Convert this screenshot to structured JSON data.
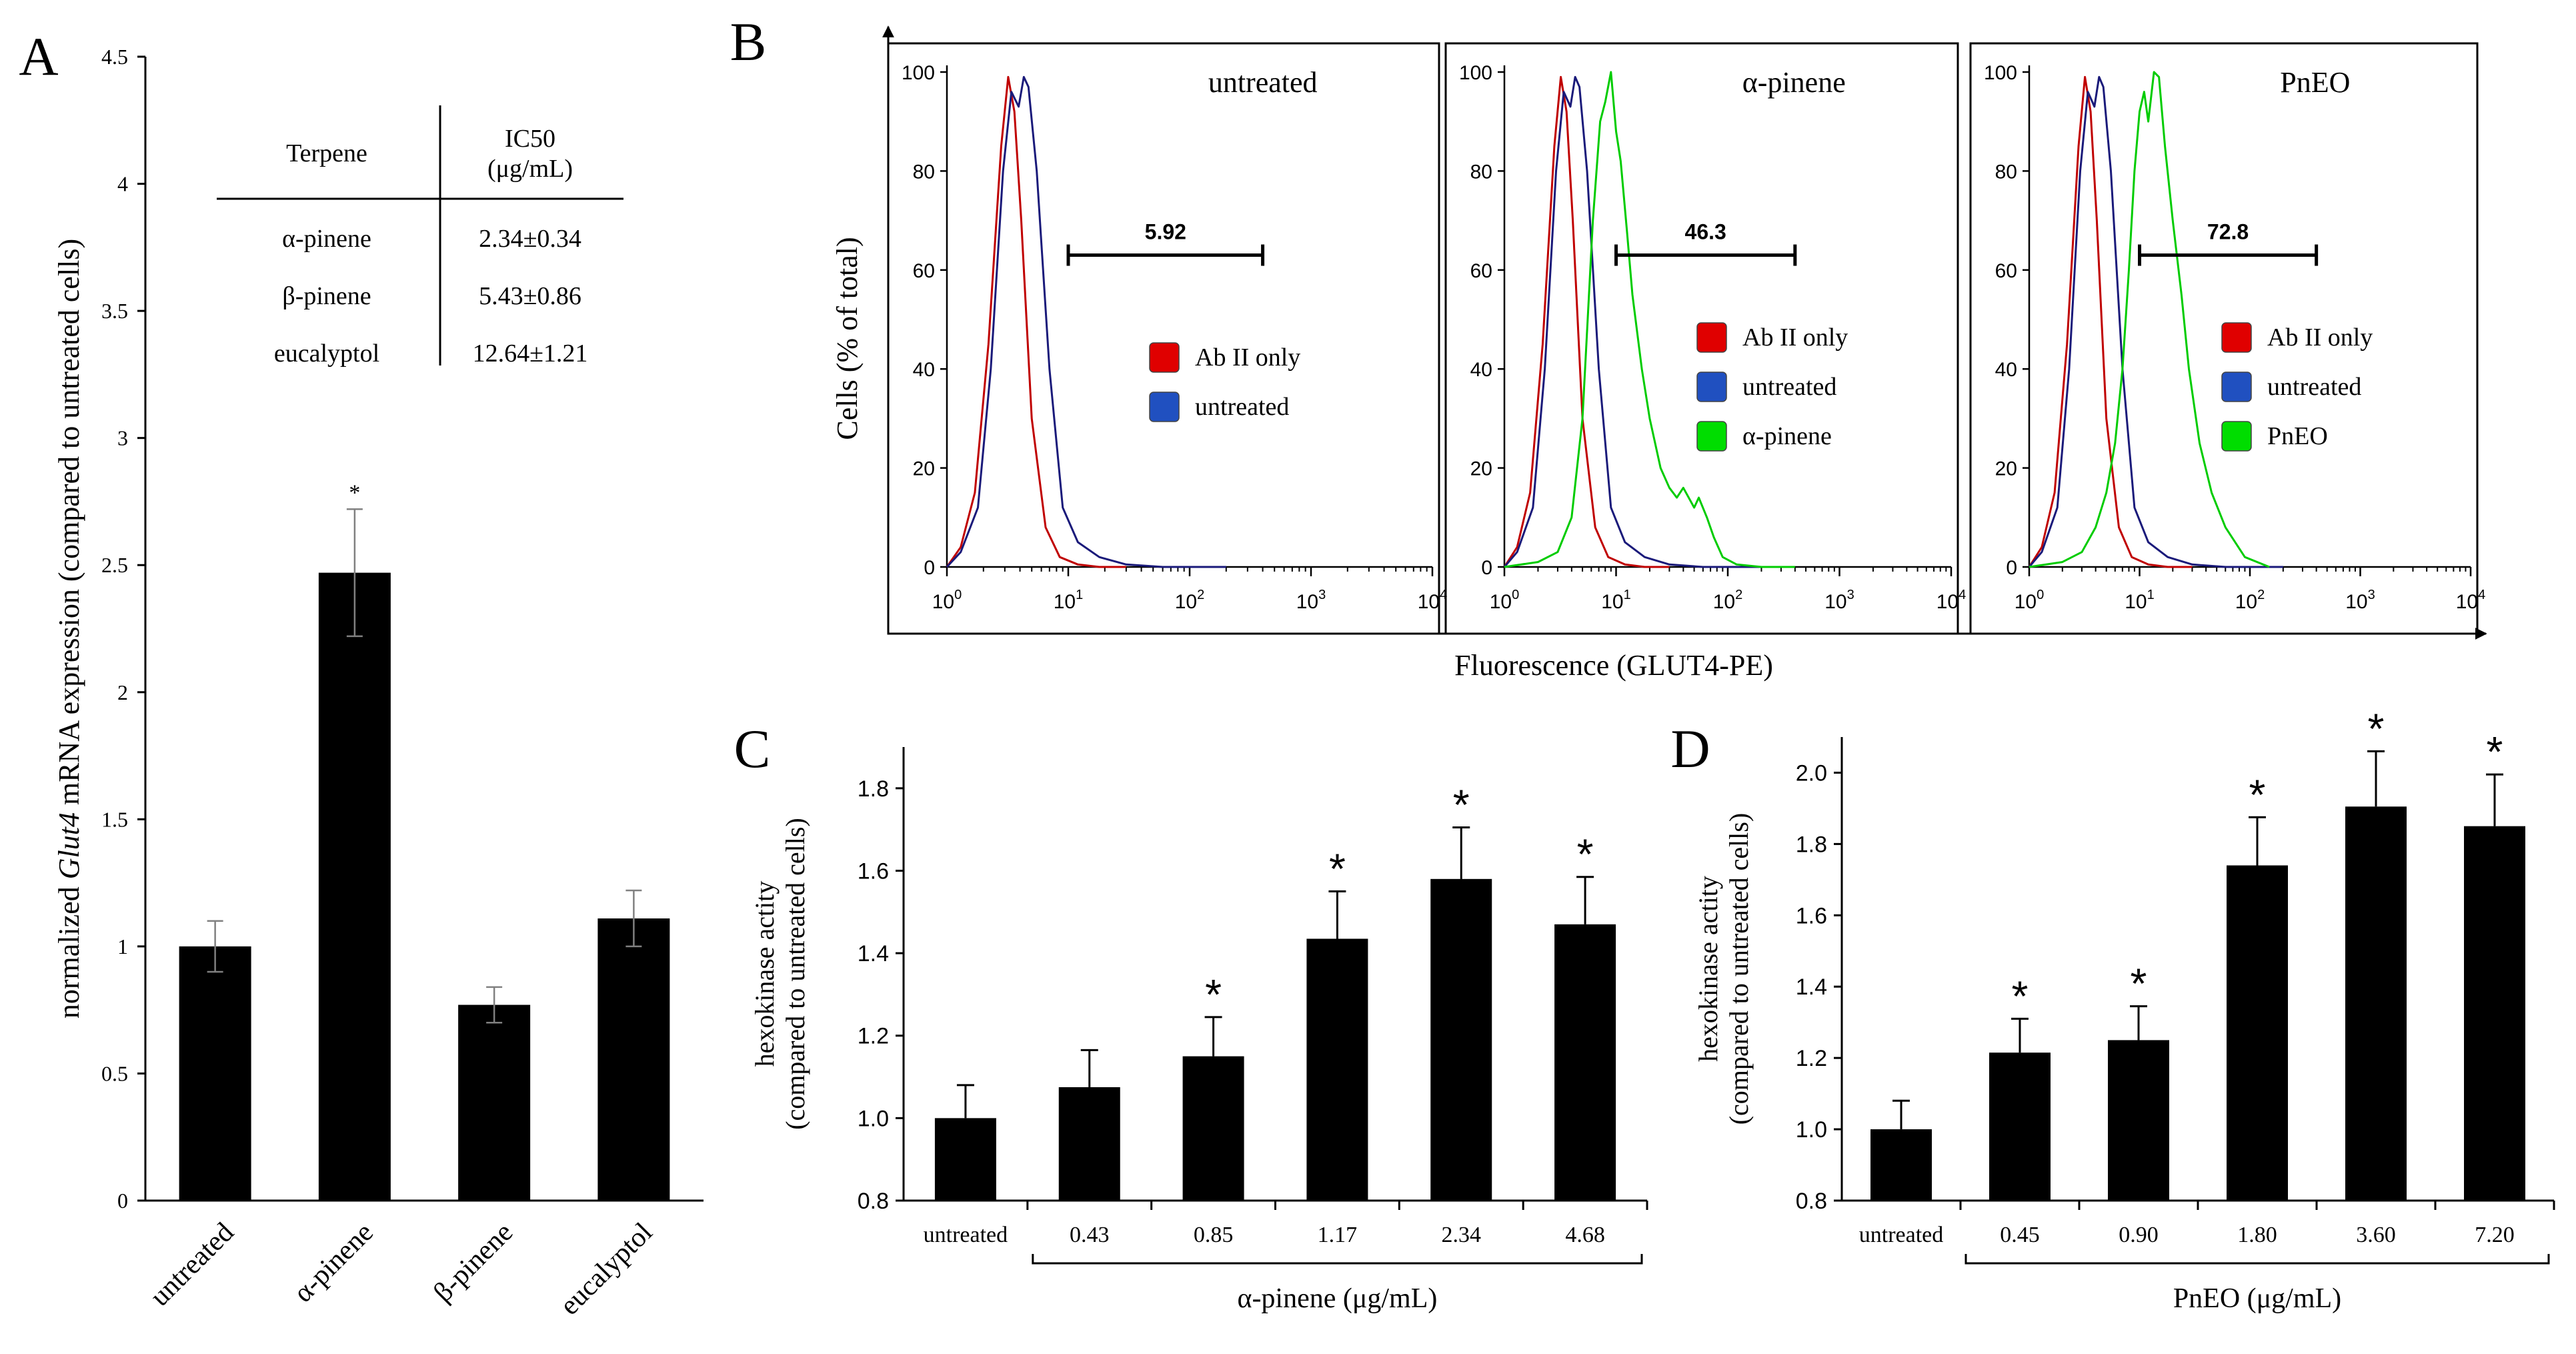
{
  "chart_data": [
    {
      "panel": "A",
      "type": "bar",
      "title": "",
      "xlabel": "",
      "ylabel_parts": [
        "normalized ",
        "Glut4",
        " mRNA expression (compared to untreated cells)"
      ],
      "ylim": [
        0,
        4.5
      ],
      "yticks": [
        0,
        0.5,
        1,
        1.5,
        2,
        2.5,
        3,
        3.5,
        4,
        4.5
      ],
      "ytick_labels": [
        "0",
        "0.5",
        "1",
        "1.5",
        "2",
        "2.5",
        "3",
        "3.5",
        "4",
        "4.5"
      ],
      "categories": [
        "untreated",
        "α-pinene",
        "β-pinene",
        "eucalyptol"
      ],
      "values": [
        1.0,
        2.47,
        0.77,
        1.11
      ],
      "errors": [
        0.1,
        0.25,
        0.07,
        0.11
      ],
      "significance": [
        "",
        "*",
        "",
        ""
      ],
      "inset_table": {
        "headers": [
          "Terpene",
          "IC50",
          "(μg/mL)"
        ],
        "rows": [
          [
            "α-pinene",
            "2.34±0.34"
          ],
          [
            "β-pinene",
            "5.43±0.86"
          ],
          [
            "eucalyptol",
            "12.64±1.21"
          ]
        ]
      }
    },
    {
      "panel": "B",
      "type": "line",
      "title": "",
      "xlabel": "Fluorescence (GLUT4-PE)",
      "ylabel": "Cells (% of total)",
      "x_scale": "log",
      "xlim": [
        1,
        10000
      ],
      "ylim": [
        0,
        100
      ],
      "yticks": [
        0,
        20,
        40,
        60,
        80,
        100
      ],
      "ytick_labels": [
        "0",
        "20",
        "40",
        "60",
        "80",
        "100"
      ],
      "xtick_bases": [
        "10",
        "10",
        "10",
        "10",
        "10"
      ],
      "xtick_exponents": [
        "0",
        "1",
        "2",
        "3",
        "4"
      ],
      "colors": {
        "ab": "#c00000",
        "untreated": "#1a1a7a",
        "alpha": "#00cc00",
        "pneo": "#00cc00"
      },
      "legend_colors": {
        "ab": "#e00000",
        "untreated": "#2050c0",
        "green": "#00dd00"
      },
      "subplots": [
        {
          "title": "untreated",
          "gate_label": "5.92",
          "gate_range": [
            10,
            400
          ],
          "gate_y": 63,
          "legend": [
            "Ab II only",
            "untreated"
          ],
          "series": [
            {
              "name": "Ab II only",
              "color_key": "ab",
              "x": [
                1,
                1.3,
                1.7,
                2.2,
                2.8,
                3.2,
                3.6,
                4.1,
                5,
                6.5,
                8.5,
                12,
                18,
                30
              ],
              "y": [
                0,
                4,
                15,
                45,
                85,
                99,
                92,
                70,
                30,
                8,
                2,
                0.5,
                0,
                0
              ]
            },
            {
              "name": "untreated",
              "color_key": "untreated",
              "x": [
                1,
                1.3,
                1.8,
                2.3,
                2.9,
                3.4,
                3.9,
                4.3,
                4.7,
                5.5,
                7,
                9,
                12,
                18,
                30,
                60,
                200
              ],
              "y": [
                0,
                3,
                12,
                40,
                80,
                96,
                93,
                99,
                97,
                80,
                40,
                12,
                5,
                2,
                0.5,
                0,
                0
              ]
            }
          ]
        },
        {
          "title": "α-pinene",
          "gate_label": "46.3",
          "gate_range": [
            10,
            400
          ],
          "gate_y": 63,
          "legend": [
            "Ab II only",
            "untreated",
            "α-pinene"
          ],
          "series": [
            {
              "name": "Ab II only",
              "color_key": "ab",
              "x": [
                1,
                1.3,
                1.7,
                2.2,
                2.8,
                3.2,
                3.6,
                4.1,
                5,
                6.5,
                8.5,
                12,
                18,
                30
              ],
              "y": [
                0,
                4,
                15,
                45,
                85,
                99,
                92,
                70,
                30,
                8,
                2,
                0.5,
                0,
                0
              ]
            },
            {
              "name": "untreated",
              "color_key": "untreated",
              "x": [
                1,
                1.3,
                1.8,
                2.3,
                2.9,
                3.4,
                3.9,
                4.3,
                4.7,
                5.5,
                7,
                9,
                12,
                18,
                30,
                60,
                200
              ],
              "y": [
                0,
                3,
                12,
                40,
                80,
                96,
                93,
                99,
                97,
                80,
                40,
                12,
                5,
                2,
                0.5,
                0,
                0
              ]
            },
            {
              "name": "α-pinene",
              "color_key": "alpha",
              "x": [
                1,
                2,
                3,
                4,
                5,
                6.2,
                7.2,
                8,
                9,
                10,
                11,
                12.5,
                14,
                17,
                20,
                25,
                30,
                35,
                40,
                50,
                55,
                65,
                75,
                90,
                120,
                200,
                400
              ],
              "y": [
                0,
                1,
                3,
                10,
                30,
                70,
                90,
                94,
                100,
                88,
                82,
                68,
                55,
                40,
                30,
                20,
                16,
                14,
                16,
                12,
                14,
                10,
                6,
                2,
                0.5,
                0,
                0
              ]
            }
          ]
        },
        {
          "title": "PnEO",
          "gate_label": "72.8",
          "gate_range": [
            10,
            400
          ],
          "gate_y": 63,
          "legend": [
            "Ab II only",
            "untreated",
            "PnEO"
          ],
          "series": [
            {
              "name": "Ab II only",
              "color_key": "ab",
              "x": [
                1,
                1.3,
                1.7,
                2.2,
                2.8,
                3.2,
                3.6,
                4.1,
                5,
                6.5,
                8.5,
                12,
                18,
                30
              ],
              "y": [
                0,
                4,
                15,
                45,
                85,
                99,
                92,
                70,
                30,
                8,
                2,
                0.5,
                0,
                0
              ]
            },
            {
              "name": "untreated",
              "color_key": "untreated",
              "x": [
                1,
                1.3,
                1.8,
                2.3,
                2.9,
                3.4,
                3.9,
                4.3,
                4.7,
                5.5,
                7,
                9,
                12,
                18,
                30,
                60,
                200
              ],
              "y": [
                0,
                3,
                12,
                40,
                80,
                96,
                93,
                99,
                97,
                80,
                40,
                12,
                5,
                2,
                0.5,
                0,
                0
              ]
            },
            {
              "name": "PnEO",
              "color_key": "pneo",
              "x": [
                1,
                2,
                3,
                4,
                5,
                6,
                7,
                8,
                9,
                10,
                11,
                12,
                13.5,
                15,
                17,
                20,
                24,
                28,
                35,
                45,
                60,
                90,
                150
              ],
              "y": [
                0,
                1,
                3,
                8,
                15,
                25,
                40,
                60,
                80,
                92,
                96,
                90,
                100,
                99,
                85,
                70,
                55,
                40,
                25,
                15,
                8,
                2,
                0
              ]
            }
          ]
        }
      ]
    },
    {
      "panel": "C",
      "type": "bar",
      "title": "",
      "xlabel": "α-pinene (μg/mL)",
      "ylabel": [
        "hexokinase actity",
        "(compared to untreated cells)"
      ],
      "ylim": [
        0.8,
        1.9
      ],
      "yticks": [
        0.8,
        1.0,
        1.2,
        1.4,
        1.6,
        1.8
      ],
      "ytick_labels": [
        "0.8",
        "1.0",
        "1.2",
        "1.4",
        "1.6",
        "1.8"
      ],
      "categories": [
        "untreated",
        "0.43",
        "0.85",
        "1.17",
        "2.34",
        "4.68"
      ],
      "values": [
        1.0,
        1.075,
        1.15,
        1.435,
        1.58,
        1.47
      ],
      "errors": [
        0.08,
        0.09,
        0.095,
        0.115,
        0.125,
        0.115
      ],
      "significance": [
        "",
        "",
        "*",
        "*",
        "*",
        "*"
      ]
    },
    {
      "panel": "D",
      "type": "bar",
      "title": "",
      "xlabel": "PnEO (μg/mL)",
      "ylabel": [
        "hexokinase actity",
        "(compared to untreated cells)"
      ],
      "ylim": [
        0.8,
        2.1
      ],
      "yticks": [
        0.8,
        1.0,
        1.2,
        1.4,
        1.6,
        1.8,
        2.0
      ],
      "ytick_labels": [
        "0.8",
        "1.0",
        "1.2",
        "1.4",
        "1.6",
        "1.8",
        "2.0"
      ],
      "categories": [
        "untreated",
        "0.45",
        "0.90",
        "1.80",
        "3.60",
        "7.20"
      ],
      "values": [
        1.0,
        1.215,
        1.25,
        1.74,
        1.905,
        1.85
      ],
      "errors": [
        0.08,
        0.095,
        0.095,
        0.135,
        0.155,
        0.145
      ],
      "significance": [
        "",
        "*",
        "*",
        "*",
        "*",
        "*"
      ]
    }
  ]
}
